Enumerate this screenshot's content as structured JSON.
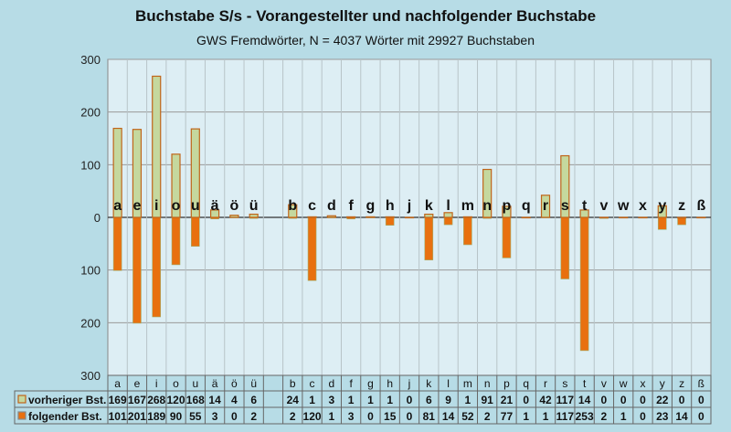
{
  "chart_data": {
    "type": "bar",
    "title": "Buchstabe S/s - Vorangestellter und nachfolgender Buchstabe",
    "subtitle": "GWS Fremdwörter,  N = 4037 Wörter mit 29927 Buchstaben",
    "categories": [
      "a",
      "e",
      "i",
      "o",
      "u",
      "ä",
      "ö",
      "ü",
      "",
      "b",
      "c",
      "d",
      "f",
      "g",
      "h",
      "j",
      "k",
      "l",
      "m",
      "n",
      "p",
      "q",
      "r",
      "s",
      "t",
      "v",
      "w",
      "x",
      "y",
      "z",
      "ß"
    ],
    "series": [
      {
        "name": "vorheriger Bst.",
        "color": "#c5d89e",
        "stroke": "#c0651a",
        "direction": "up",
        "values": [
          169,
          167,
          268,
          120,
          168,
          14,
          4,
          6,
          null,
          24,
          1,
          3,
          1,
          1,
          1,
          0,
          6,
          9,
          1,
          91,
          21,
          0,
          42,
          117,
          14,
          0,
          0,
          0,
          22,
          0,
          0
        ]
      },
      {
        "name": "folgender Bst.",
        "color": "#e8700f",
        "stroke": "#a0b070",
        "direction": "down",
        "values": [
          101,
          201,
          189,
          90,
          55,
          3,
          0,
          2,
          null,
          2,
          120,
          1,
          3,
          0,
          15,
          0,
          81,
          14,
          52,
          2,
          77,
          1,
          1,
          117,
          253,
          2,
          1,
          0,
          23,
          14,
          0
        ]
      }
    ],
    "yticks": [
      "300",
      "200",
      "100",
      "0",
      "100",
      "200",
      "300"
    ],
    "ylim": [
      -300,
      300
    ],
    "grid": true,
    "legend": "data-table"
  }
}
